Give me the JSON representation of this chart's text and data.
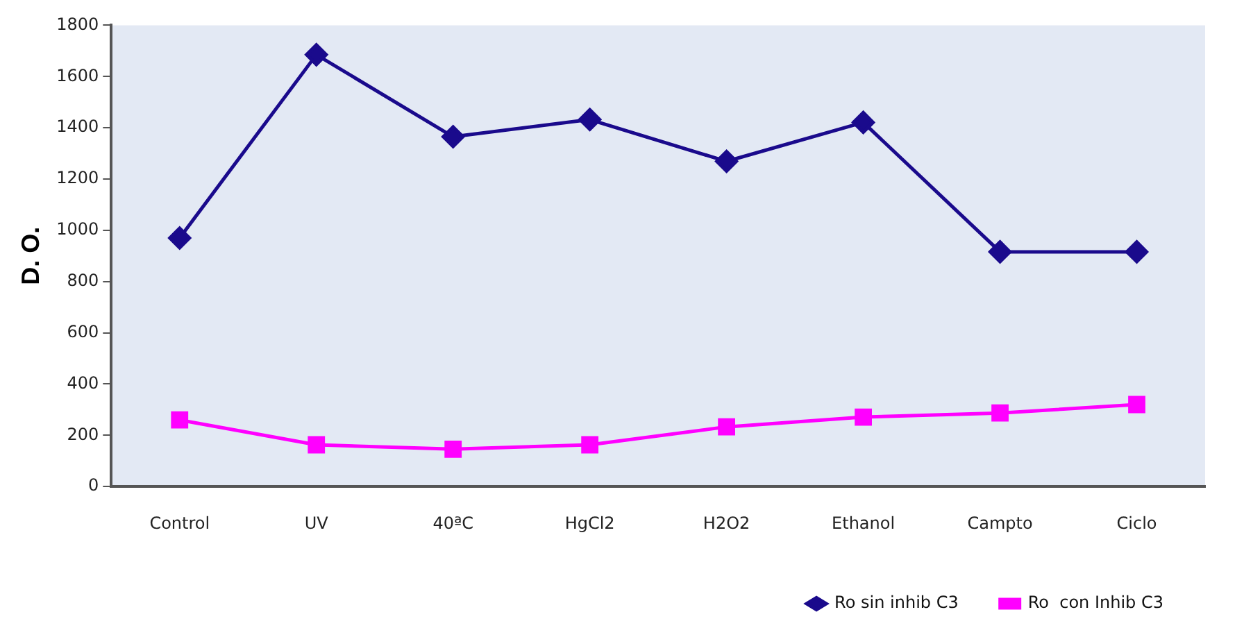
{
  "chart_data": {
    "type": "line",
    "ylabel": "D. O.",
    "categories": [
      "Control",
      "UV",
      "40ªC",
      "HgCl2",
      "H2O2",
      "Ethanol",
      "Campto",
      "Ciclo"
    ],
    "series": [
      {
        "name": "Ro sin inhib C3",
        "color": "#1a0a8c",
        "marker": "diamond",
        "values": [
          970,
          1685,
          1365,
          1432,
          1269,
          1421,
          916,
          916
        ]
      },
      {
        "name": "Ro  con Inhib C3",
        "color": "#ff00ff",
        "marker": "square",
        "values": [
          260,
          163,
          146,
          163,
          233,
          271,
          287,
          320
        ]
      }
    ],
    "ylim": [
      0,
      1800
    ],
    "yticks": [
      0,
      200,
      400,
      600,
      800,
      1000,
      1200,
      1400,
      1600,
      1800
    ],
    "grid": false,
    "legend": "bottom right",
    "line_style": "solid"
  }
}
